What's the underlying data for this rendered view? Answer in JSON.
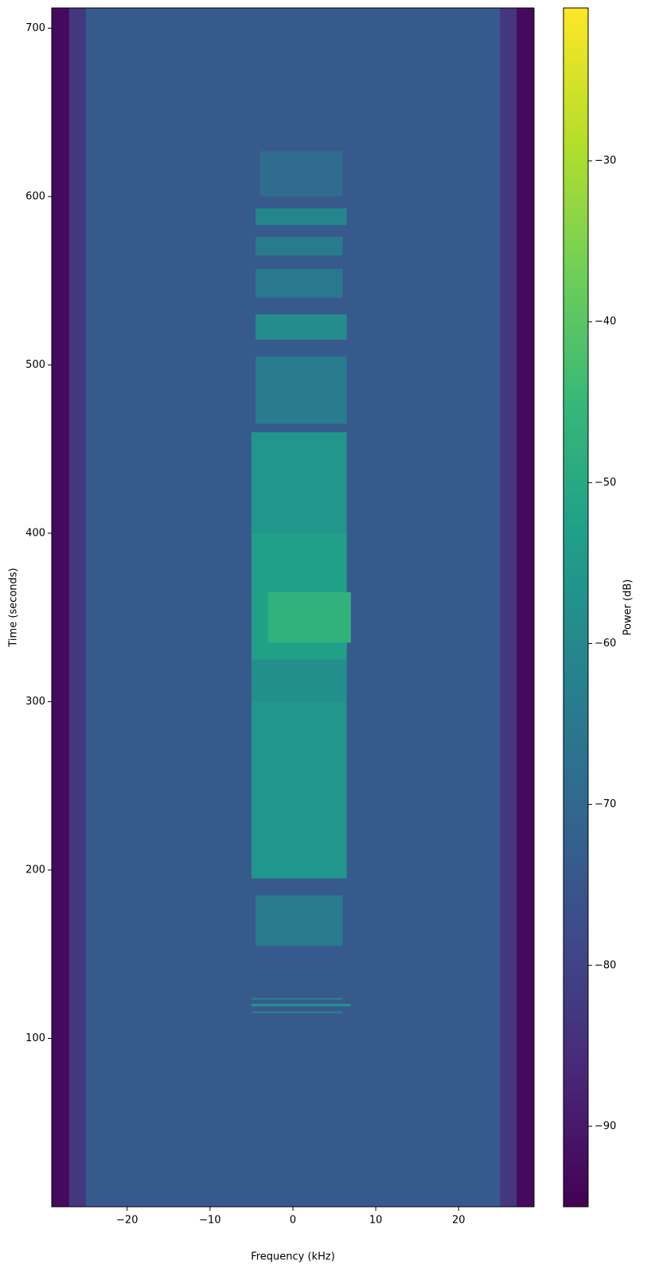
{
  "chart_data": {
    "type": "spectrogram",
    "xlabel": "Frequency (kHz)",
    "ylabel": "Time (seconds)",
    "colorbar_label": "Power (dB)",
    "colormap": "viridis",
    "xlim": [
      -29.1,
      29.1
    ],
    "xticks": [
      {
        "value": -20,
        "label": "−20"
      },
      {
        "value": -10,
        "label": "−10"
      },
      0,
      10,
      20
    ],
    "ylim": [
      0,
      712
    ],
    "yticks": [
      100,
      200,
      300,
      400,
      500,
      600,
      700
    ],
    "clim": [
      -95,
      -20.5
    ],
    "cticks": [
      {
        "value": -90,
        "label": "−90"
      },
      {
        "value": -80,
        "label": "−80"
      },
      {
        "value": -70,
        "label": "−70"
      },
      {
        "value": -60,
        "label": "−60"
      },
      {
        "value": -50,
        "label": "−50"
      },
      {
        "value": -40,
        "label": "−40"
      },
      {
        "value": -30,
        "label": "−30"
      }
    ],
    "segments": [
      {
        "time": [
          0,
          712
        ],
        "frequency": [
          -29.1,
          29.1
        ],
        "power": -74
      },
      {
        "time": [
          0,
          712
        ],
        "frequency": [
          -27,
          -25
        ],
        "power": -83
      },
      {
        "time": [
          0,
          712
        ],
        "frequency": [
          25,
          27
        ],
        "power": -83
      },
      {
        "time": [
          0,
          712
        ],
        "frequency": [
          -29.1,
          -27
        ],
        "power": -93
      },
      {
        "time": [
          0,
          712
        ],
        "frequency": [
          27,
          29.1
        ],
        "power": -93
      },
      {
        "time": [
          600,
          627
        ],
        "frequency": [
          -4,
          6
        ],
        "power": -69
      },
      {
        "time": [
          583,
          593
        ],
        "frequency": [
          -4.5,
          6.5
        ],
        "power": -61
      },
      {
        "time": [
          565,
          576
        ],
        "frequency": [
          -4.5,
          6
        ],
        "power": -64
      },
      {
        "time": [
          540,
          557
        ],
        "frequency": [
          -4.5,
          6
        ],
        "power": -65
      },
      {
        "time": [
          515,
          530
        ],
        "frequency": [
          -4.5,
          6.5
        ],
        "power": -59
      },
      {
        "time": [
          465,
          505
        ],
        "frequency": [
          -4.5,
          6.5
        ],
        "power": -64
      },
      {
        "time": [
          400,
          460
        ],
        "frequency": [
          -5,
          6.5
        ],
        "power": -56
      },
      {
        "time": [
          325,
          400
        ],
        "frequency": [
          -5,
          6.5
        ],
        "power": -53
      },
      {
        "time": [
          335,
          365
        ],
        "frequency": [
          -3,
          7
        ],
        "power": -47
      },
      {
        "time": [
          300,
          325
        ],
        "frequency": [
          -5,
          6.5
        ],
        "power": -58
      },
      {
        "time": [
          195,
          300
        ],
        "frequency": [
          -5,
          6.5
        ],
        "power": -56
      },
      {
        "time": [
          155,
          185
        ],
        "frequency": [
          -4.5,
          6
        ],
        "power": -64
      },
      {
        "time": [
          123,
          124
        ],
        "frequency": [
          -5,
          6
        ],
        "power": -62
      },
      {
        "time": [
          119,
          120.5
        ],
        "frequency": [
          -5,
          7
        ],
        "power": -57
      },
      {
        "time": [
          115,
          116
        ],
        "frequency": [
          -5,
          6
        ],
        "power": -62
      }
    ]
  }
}
